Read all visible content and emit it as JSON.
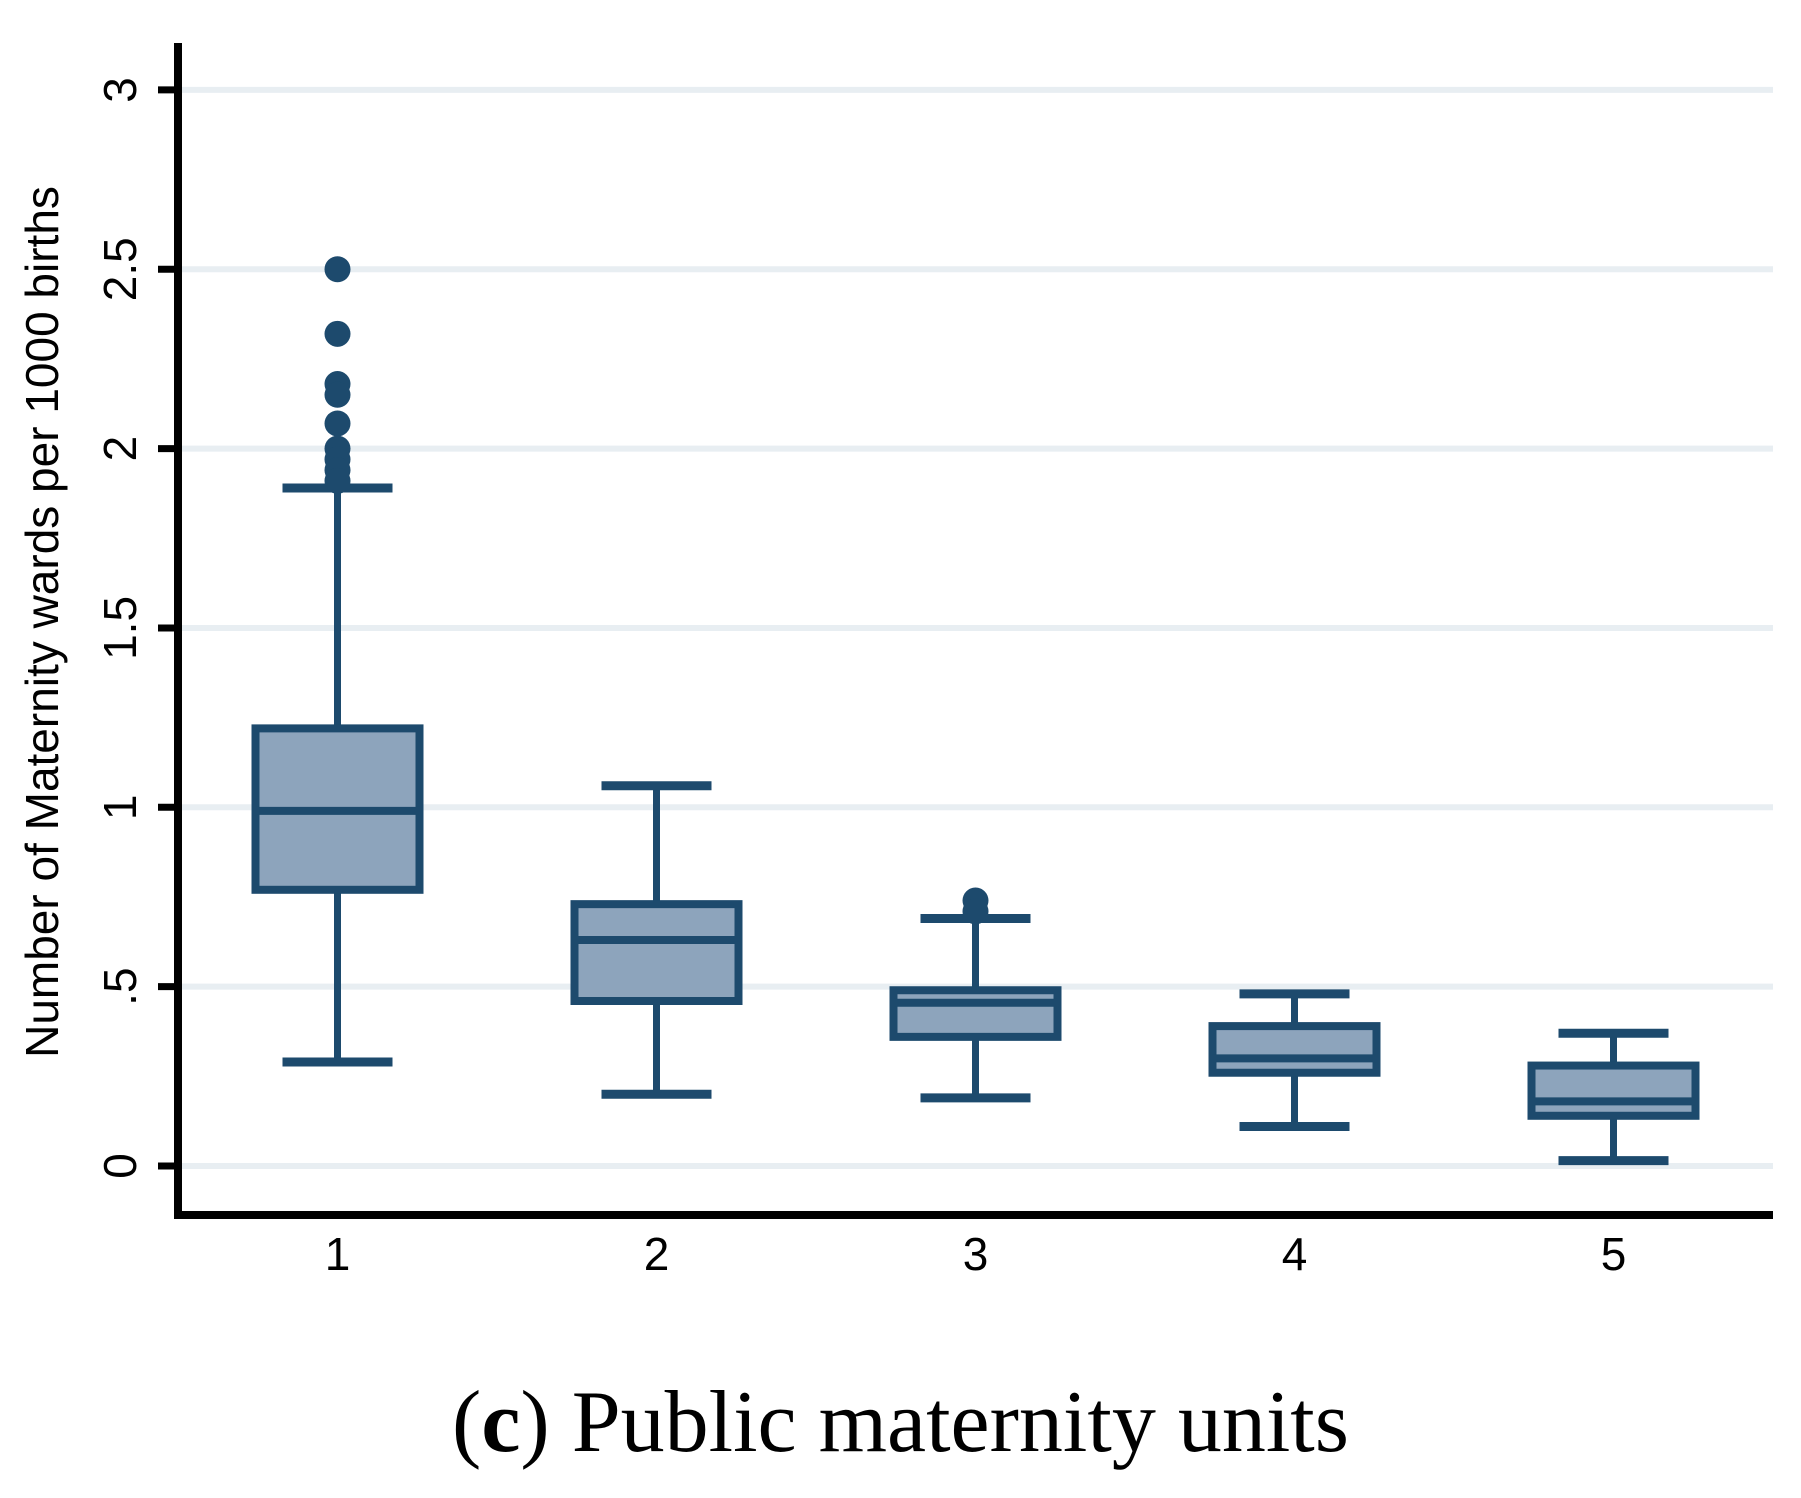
{
  "chart_data": {
    "type": "box",
    "caption": {
      "paren_open": "(",
      "letter": "c",
      "rest": ") Public maternity units"
    },
    "ylabel": "Number of Maternity wards per 1000 births",
    "xlabel": "",
    "categories": [
      "1",
      "2",
      "3",
      "4",
      "5"
    ],
    "y_ticks": [
      {
        "value": 0,
        "label": "0"
      },
      {
        "value": 0.5,
        "label": ".5"
      },
      {
        "value": 1,
        "label": "1"
      },
      {
        "value": 1.5,
        "label": "1.5"
      },
      {
        "value": 2,
        "label": "2"
      },
      {
        "value": 2.5,
        "label": "2.5"
      },
      {
        "value": 3,
        "label": "3"
      }
    ],
    "ylim": [
      0,
      3
    ],
    "grid": true,
    "legend": "none",
    "boxes": [
      {
        "category": "1",
        "q1": 0.77,
        "median": 0.99,
        "q3": 1.22,
        "whisker_low": 0.29,
        "whisker_high": 1.89,
        "outliers": [
          2.5,
          2.32,
          2.18,
          2.15,
          2.07,
          2.0,
          1.97,
          1.94,
          1.91
        ]
      },
      {
        "category": "2",
        "q1": 0.46,
        "median": 0.63,
        "q3": 0.73,
        "whisker_low": 0.2,
        "whisker_high": 1.06,
        "outliers": []
      },
      {
        "category": "3",
        "q1": 0.36,
        "median": 0.455,
        "q3": 0.49,
        "whisker_low": 0.19,
        "whisker_high": 0.69,
        "outliers": [
          0.74,
          0.71
        ]
      },
      {
        "category": "4",
        "q1": 0.26,
        "median": 0.3,
        "q3": 0.39,
        "whisker_low": 0.11,
        "whisker_high": 0.48,
        "outliers": []
      },
      {
        "category": "5",
        "q1": 0.14,
        "median": 0.18,
        "q3": 0.28,
        "whisker_low": 0.015,
        "whisker_high": 0.37,
        "outliers": []
      }
    ],
    "colors": {
      "box_fill": "#8da4bc",
      "box_stroke": "#1d4a6d",
      "outlier": "#1d4a6d",
      "gridline": "#e8eef2",
      "axis": "#000000",
      "background": "#ffffff"
    }
  }
}
